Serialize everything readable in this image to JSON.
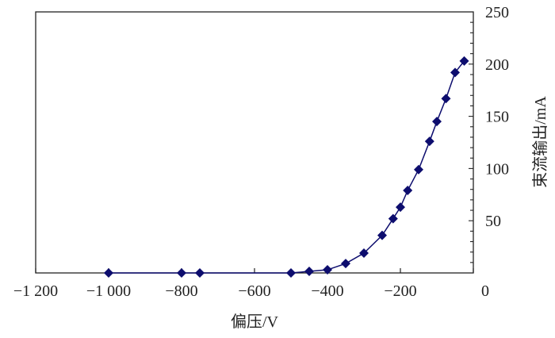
{
  "chart_data": {
    "type": "line",
    "title": "",
    "xlabel": "偏压/V",
    "ylabel": "束流输出/mA",
    "xlim": [
      -1200,
      0
    ],
    "ylim": [
      0,
      250
    ],
    "x_ticks": [
      -1200,
      -1000,
      -800,
      -600,
      -400,
      -200,
      0
    ],
    "x_tick_labels": [
      "−1 200",
      "−1 000",
      "−800",
      "−600",
      "−400",
      "−200",
      "0"
    ],
    "y_ticks": [
      50,
      100,
      150,
      200,
      250
    ],
    "y_tick_labels": [
      "50",
      "100",
      "150",
      "200",
      "250"
    ],
    "y_axis_side": "right",
    "grid": false,
    "marker": "diamond",
    "color": "#0d0d6e",
    "series": [
      {
        "x": [
          -1000,
          -800,
          -750,
          -500,
          -450,
          -400,
          -350,
          -300,
          -250,
          -220,
          -200,
          -180,
          -150,
          -120,
          -100,
          -75,
          -50,
          -25
        ],
        "y": [
          0,
          0,
          0,
          0,
          1.5,
          3,
          9,
          19,
          36,
          52,
          63,
          79,
          99,
          126,
          145,
          167,
          192,
          203
        ]
      }
    ]
  }
}
